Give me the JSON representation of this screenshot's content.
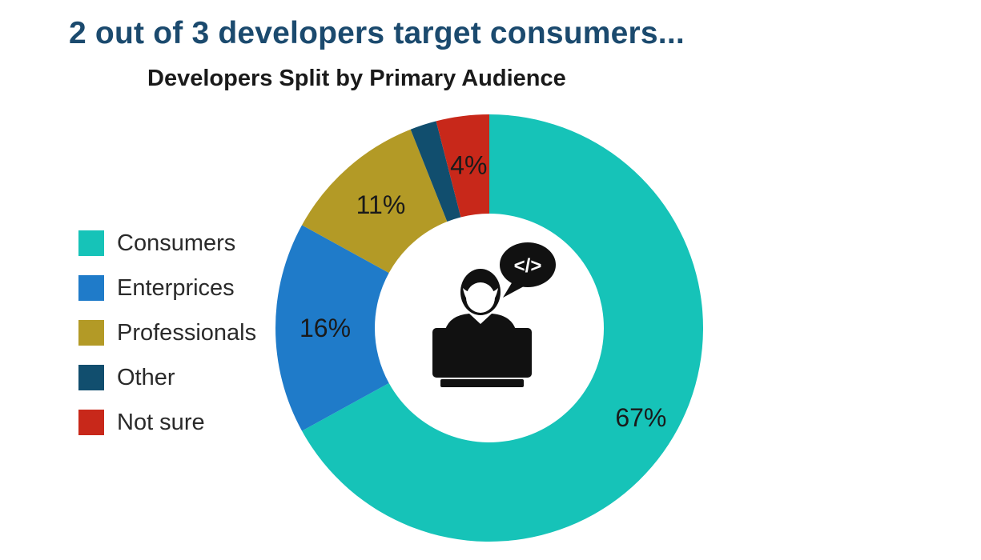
{
  "headline": "2 out of 3 developers target consumers...",
  "chart_data": {
    "type": "pie",
    "title": "Developers Split by Primary Audience",
    "donut": true,
    "legend_position": "left",
    "categories": [
      "Consumers",
      "Enterprices",
      "Professionals",
      "Other",
      "Not sure"
    ],
    "values": [
      67,
      16,
      11,
      2,
      4
    ],
    "data_labels": [
      "67%",
      "16%",
      "11%",
      "",
      "4%"
    ],
    "colors": [
      "#16c3b8",
      "#1f7bc9",
      "#b39a26",
      "#114e6e",
      "#c8281a"
    ]
  },
  "center_icon": "developer-at-laptop-with-code-bubble-icon",
  "code_bubble_text": "</>"
}
